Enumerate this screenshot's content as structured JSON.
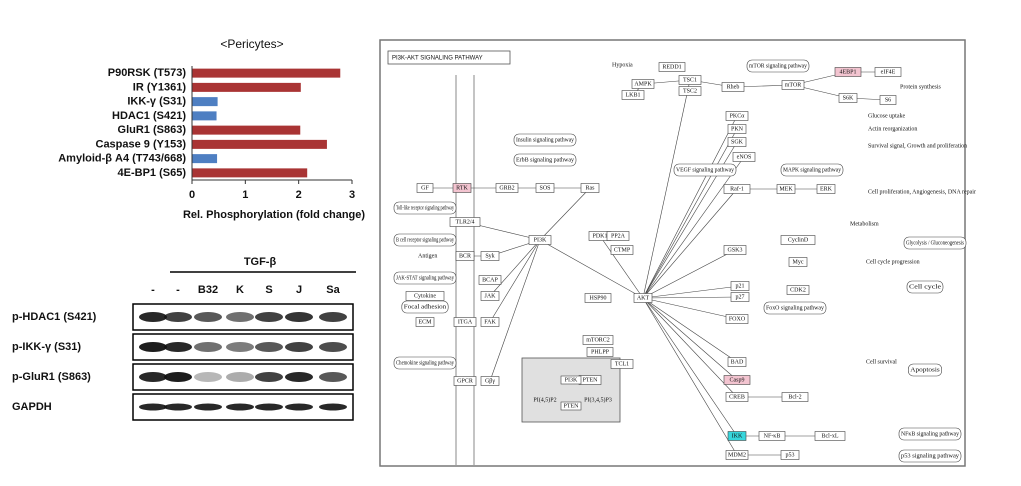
{
  "chart_data": {
    "type": "barh",
    "title": "<Pericytes>",
    "categories": [
      "P90RSK (T573)",
      "IR (Y1361)",
      "IKK-γ (S31)",
      "HDAC1 (S421)",
      "GluR1 (S863)",
      "Caspase 9 (Y153)",
      "Amyloid-β A4 (T743/668)",
      "4E-BP1 (S65)"
    ],
    "values": [
      2.78,
      2.04,
      0.48,
      0.46,
      2.03,
      2.53,
      0.47,
      2.16
    ],
    "colors": [
      "#a93434",
      "#a93434",
      "#4e7fc2",
      "#4e7fc2",
      "#a93434",
      "#a93434",
      "#4e7fc2",
      "#a93434"
    ],
    "xlim": [
      0,
      3
    ],
    "xticks": [
      0,
      1,
      2,
      3
    ],
    "xlabel": "Rel. Phosphorylation (fold change)"
  },
  "blot": {
    "treatment": "TGF-β",
    "lanes": [
      "-",
      "-",
      "B32",
      "K",
      "S",
      "J",
      "Sa"
    ],
    "rows": [
      "p-HDAC1 (S421)",
      "p-IKK-γ (S31)",
      "p-GluR1 (S863)",
      "GAPDH"
    ]
  },
  "pathway": {
    "title": "PI3K-AKT SIGNALING PATHWAY",
    "nodes": [
      "GF",
      "RTK",
      "GRB2",
      "SOS",
      "Ras",
      "PI3K",
      "PDK1",
      "AKT",
      "PTEN",
      "ECM",
      "ITGA",
      "FAK",
      "Cytokine",
      "JAK",
      "TLR2/4",
      "BCR",
      "Syk",
      "BCAP",
      "GPCR",
      "Gβγ",
      "PP2A",
      "CTMP",
      "HSP90",
      "mTORC2",
      "PHLPP",
      "TCL1",
      "LKB1",
      "AMPK",
      "REDD1",
      "TSC1",
      "TSC2",
      "Rheb",
      "mTOR",
      "4EBP1",
      "eIF4E",
      "S6K",
      "S6",
      "PKCα",
      "PKN",
      "SGK",
      "eNOS",
      "Raf-1",
      "MEK",
      "ERK",
      "GSK3",
      "CyclinD",
      "Myc",
      "p21",
      "p27",
      "CDK2",
      "FOXO",
      "BAD",
      "Casp9",
      "CREB",
      "Bcl-2",
      "IKK",
      "NF-κB",
      "Bcl-xL",
      "MDM2",
      "p53"
    ],
    "pathways": [
      "Insulin signaling pathway",
      "ErbB signaling pathway",
      "mTOR signaling pathway",
      "MAPK signaling pathway",
      "VEGF signaling pathway",
      "FoxO signaling pathway",
      "Apoptosis",
      "Cell cycle",
      "Glycolysis / Gluconeogenesis",
      "NFκB signaling pathway",
      "p53 signaling pathway",
      "Toll-like receptor signaling pathway",
      "B cell receptor signaling pathway",
      "JAK-STAT signaling pathway",
      "Focal adhesion",
      "Chemokine signaling pathway"
    ],
    "outcomes": [
      "Protein synthesis",
      "Glucose uptake",
      "Actin reorganization",
      "Survival signal, Growth and proliferation",
      "Cell proliferation, Angiogenesis, DNA repair",
      "Metabolism",
      "Cell cycle progression",
      "Cell survival",
      "Hypoxia",
      "Antigen"
    ],
    "inset": [
      "PI3K",
      "PI(4,5)P2",
      "PI(3,4,5)P3",
      "PTEN"
    ]
  }
}
